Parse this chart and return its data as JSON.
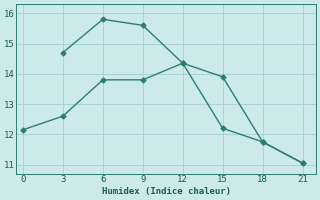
{
  "xlabel": "Humidex (Indice chaleur)",
  "background_color": "#cceae7",
  "grid_color": "#aad4d0",
  "line_color": "#2d7d6e",
  "line1_x": [
    3,
    6,
    9,
    12,
    15,
    18,
    21
  ],
  "line1_y": [
    14.7,
    15.8,
    15.6,
    14.35,
    13.9,
    11.75,
    11.05
  ],
  "line2_x": [
    0,
    3,
    6,
    9,
    12,
    15,
    18,
    21
  ],
  "line2_y": [
    12.15,
    12.6,
    13.8,
    13.8,
    14.35,
    12.2,
    11.75,
    11.05
  ],
  "xlim": [
    -0.5,
    22
  ],
  "ylim": [
    10.7,
    16.3
  ],
  "xticks": [
    0,
    3,
    6,
    9,
    12,
    15,
    18,
    21
  ],
  "yticks": [
    11,
    12,
    13,
    14,
    15,
    16
  ],
  "markersize": 2.5,
  "linewidth": 1.0
}
